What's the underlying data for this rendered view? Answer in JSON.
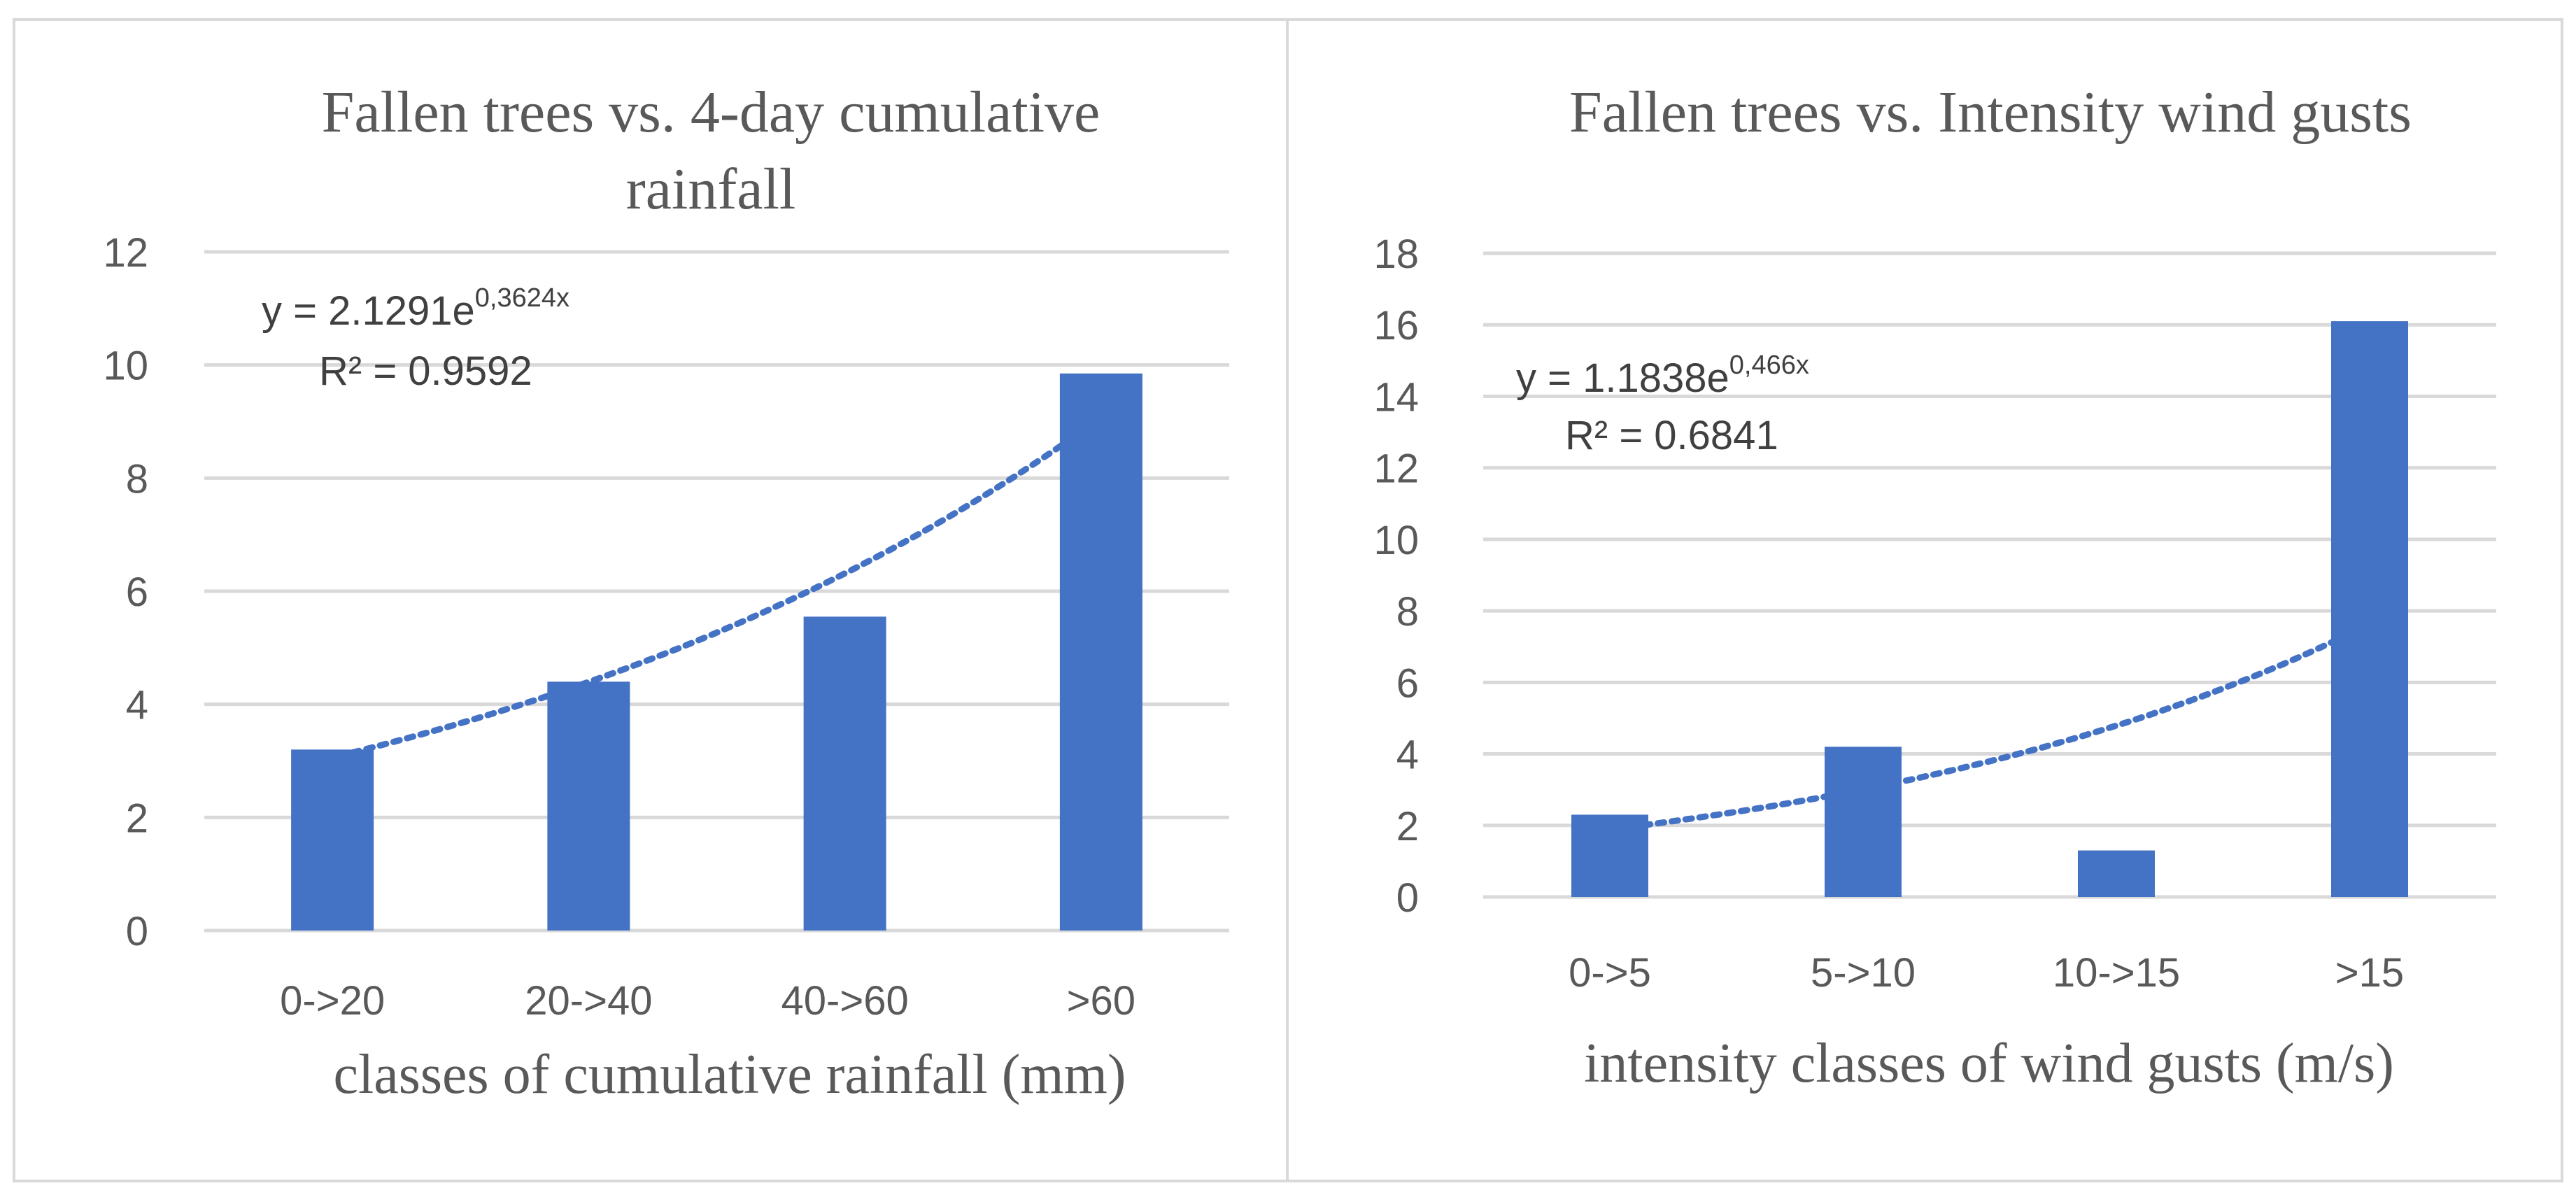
{
  "chart_data": [
    {
      "type": "bar",
      "title": "Fallen trees vs. 4-day cumulative rainfall",
      "title_lines": [
        "Fallen trees vs. 4-day cumulative",
        "rainfall"
      ],
      "xlabel": "classes of cumulative rainfall (mm)",
      "ylabel": "",
      "categories": [
        "0->20",
        "20->40",
        "40->60",
        ">60"
      ],
      "values": [
        3.2,
        4.4,
        5.55,
        9.85
      ],
      "ylim": [
        0,
        12
      ],
      "yticks": [
        0,
        2,
        4,
        6,
        8,
        10,
        12
      ],
      "grid": true,
      "trendline": {
        "type": "exponential",
        "a": 2.1291,
        "b": 0.3624,
        "equation_prefix": "y = 2.1291e",
        "equation_exponent": "0,3624x",
        "r2_label": "R² = 0.9592"
      }
    },
    {
      "type": "bar",
      "title": "Fallen trees vs. Intensity wind gusts",
      "title_lines": [
        "Fallen trees vs. Intensity wind gusts"
      ],
      "xlabel": "intensity classes of wind gusts (m/s)",
      "ylabel": "",
      "categories": [
        "0->5",
        "5->10",
        "10->15",
        ">15"
      ],
      "values": [
        2.3,
        4.2,
        1.3,
        16.1
      ],
      "ylim": [
        0,
        18
      ],
      "yticks": [
        0,
        2,
        4,
        6,
        8,
        10,
        12,
        14,
        16,
        18
      ],
      "grid": true,
      "trendline": {
        "type": "exponential",
        "a": 1.1838,
        "b": 0.466,
        "equation_prefix": "y = 1.1838e",
        "equation_exponent": "0,466x",
        "r2_label": "R² = 0.6841"
      }
    }
  ],
  "colors": {
    "bar": "#4472c4",
    "trend": "#4472c4",
    "grid": "#d9d9d9",
    "axis": "#d9d9d9",
    "text": "#595959",
    "equation": "#404040"
  }
}
